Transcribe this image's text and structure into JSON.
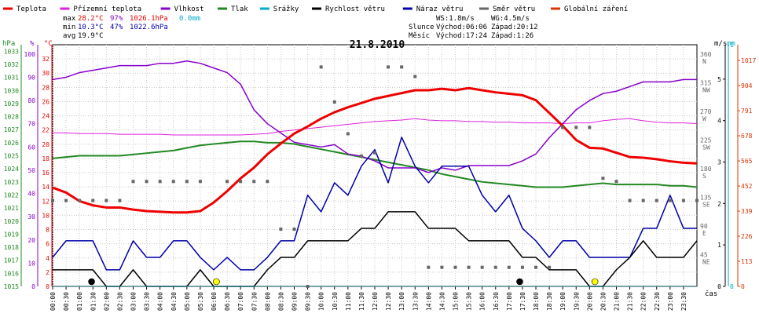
{
  "chart_data": {
    "type": "line",
    "title": "21.8.2010",
    "legend": [
      {
        "label": "Teplota",
        "color": "#ee0000"
      },
      {
        "label": "Přízemní teplota",
        "color": "#dd22dd"
      },
      {
        "label": "Vlhkost",
        "color": "#8800cc"
      },
      {
        "label": "Tlak",
        "color": "#228822"
      },
      {
        "label": "Srážky",
        "color": "#00aacc"
      },
      {
        "label": "Rychlost větru",
        "color": "#000000"
      },
      {
        "label": "Náraz větru",
        "color": "#0000aa"
      },
      {
        "label": "Směr větru",
        "color": "#666666"
      },
      {
        "label": "Globální záření",
        "color": "#dd3300"
      }
    ],
    "stats": {
      "max_label": "max",
      "max_temp": "28.2°C",
      "max_hum": "97%",
      "max_press": "1026.1hPa",
      "max_rain": "0.0mm",
      "min_label": "min",
      "min_temp": "10.3°C",
      "min_hum": "47%",
      "min_press": "1022.6hPa",
      "avg_label": "avg",
      "avg_temp": "19.9°C"
    },
    "wind_info": {
      "ws": "WS:1.8m/s",
      "wg": "WG:4.5m/s"
    },
    "sun": {
      "label": "Slunce",
      "rise": "Východ:06:06",
      "set": "Západ:20:12"
    },
    "moon": {
      "label": "Měsíc",
      "rise": "Východ:17:24",
      "set": "Západ:1:26"
    },
    "axes": {
      "hpa_title": "hPa",
      "pct_title": "%",
      "c_title": "°C",
      "ms_title": "m/s",
      "mm_title": "mm",
      "x_title": "čas",
      "hpa_ticks": [
        1015,
        1016,
        1017,
        1018,
        1019,
        1020,
        1021,
        1022,
        1023,
        1024,
        1025,
        1026,
        1027,
        1028,
        1029,
        1030,
        1031,
        1032,
        1033
      ],
      "pct_ticks": [
        0,
        10,
        20,
        30,
        40,
        50,
        60,
        70,
        80,
        90,
        100
      ],
      "c_ticks": [
        0,
        2,
        4,
        6,
        8,
        10,
        12,
        14,
        16,
        18,
        20,
        22,
        24,
        26,
        28,
        30,
        32
      ],
      "dir_ticks": [
        {
          "deg": "360",
          "dir": "N"
        },
        {
          "deg": "315",
          "dir": "NW"
        },
        {
          "deg": "270",
          "dir": "W"
        },
        {
          "deg": "225",
          "dir": "SW"
        },
        {
          "deg": "180",
          "dir": "S"
        },
        {
          "deg": "135",
          "dir": "SE"
        },
        {
          "deg": "90",
          "dir": "E"
        },
        {
          "deg": "45",
          "dir": "NE"
        }
      ],
      "ms_ticks": [
        0,
        1,
        2,
        3,
        4,
        5
      ],
      "mm_ticks": [
        0,
        1
      ],
      "rad_ticks": [
        0,
        113,
        226,
        339,
        452,
        565,
        678,
        791,
        904,
        1017
      ],
      "x_ticks": [
        "00:00",
        "00:30",
        "01:00",
        "01:30",
        "02:00",
        "02:30",
        "03:00",
        "03:30",
        "04:00",
        "04:30",
        "05:00",
        "05:30",
        "06:00",
        "06:30",
        "07:00",
        "07:30",
        "08:00",
        "08:30",
        "09:00",
        "09:30",
        "10:00",
        "10:30",
        "11:00",
        "11:30",
        "12:00",
        "12:30",
        "13:00",
        "13:30",
        "14:00",
        "14:30",
        "15:00",
        "15:30",
        "16:00",
        "16:30",
        "17:00",
        "17:30",
        "18:00",
        "18:30",
        "19:00",
        "19:30",
        "20:00",
        "20:30",
        "21:00",
        "21:30",
        "22:00",
        "22:30",
        "23:00",
        "23:30"
      ]
    },
    "x_hours": [
      0,
      0.5,
      1,
      1.5,
      2,
      2.5,
      3,
      3.5,
      4,
      4.5,
      5,
      5.5,
      6,
      6.5,
      7,
      7.5,
      8,
      8.5,
      9,
      9.5,
      10,
      10.5,
      11,
      11.5,
      12,
      12.5,
      13,
      13.5,
      14,
      14.5,
      15,
      15.5,
      16,
      16.5,
      17,
      17.5,
      18,
      18.5,
      19,
      19.5,
      20,
      20.5,
      21,
      21.5,
      22,
      22.5,
      23,
      23.5,
      24
    ],
    "series": [
      {
        "name": "Teplota",
        "color": "#ee0000",
        "unit": "°C",
        "values": [
          13.9,
          13.2,
          12,
          11.4,
          11.1,
          11.1,
          10.8,
          10.6,
          10.5,
          10.4,
          10.4,
          10.6,
          11.8,
          13.4,
          15.2,
          16.7,
          18.6,
          20.1,
          21.5,
          22.5,
          23.6,
          24.5,
          25.2,
          25.8,
          26.4,
          26.8,
          27.2,
          27.6,
          27.6,
          27.8,
          27.6,
          27.9,
          27.6,
          27.3,
          27.1,
          26.9,
          26.2,
          24.4,
          22.6,
          20.6,
          19.5,
          19.4,
          18.8,
          18.2,
          18.1,
          17.9,
          17.6,
          17.4,
          17.3
        ]
      },
      {
        "name": "Přízemní teplota",
        "color": "#dd22dd",
        "unit": "°C",
        "values": [
          21.6,
          21.6,
          21.5,
          21.5,
          21.5,
          21.4,
          21.4,
          21.4,
          21.4,
          21.3,
          21.3,
          21.3,
          21.3,
          21.3,
          21.3,
          21.4,
          21.5,
          21.8,
          22,
          22.2,
          22.4,
          22.6,
          22.8,
          23,
          23.2,
          23.3,
          23.4,
          23.6,
          23.4,
          23.3,
          23.3,
          23.2,
          23.2,
          23.1,
          23.1,
          23,
          23,
          23,
          22.9,
          23,
          23,
          23.3,
          23.5,
          23.6,
          23.3,
          23.1,
          23,
          23,
          22.9
        ]
      },
      {
        "name": "Vlhkost",
        "color": "#8800cc",
        "unit": "%",
        "values": [
          89,
          90,
          92,
          93,
          94,
          95,
          95,
          95,
          96,
          96,
          97,
          96,
          94,
          92,
          87,
          76,
          70,
          66,
          62,
          61,
          60,
          61,
          57,
          56,
          54,
          51,
          51,
          51,
          49,
          51,
          50,
          52,
          52,
          52,
          52,
          54,
          57,
          64,
          70,
          76,
          80,
          83,
          84,
          86,
          88,
          88,
          88,
          89,
          89
        ]
      },
      {
        "name": "Tlak",
        "color": "#228822",
        "unit": "hPa",
        "values": [
          1024.8,
          1024.9,
          1025,
          1025,
          1025,
          1025,
          1025.1,
          1025.2,
          1025.3,
          1025.4,
          1025.6,
          1025.8,
          1025.9,
          1026,
          1026.1,
          1026.1,
          1026,
          1026,
          1025.9,
          1025.7,
          1025.5,
          1025.3,
          1025.1,
          1024.9,
          1024.7,
          1024.5,
          1024.3,
          1024.1,
          1023.9,
          1023.6,
          1023.4,
          1023.2,
          1023,
          1022.9,
          1022.8,
          1022.7,
          1022.6,
          1022.6,
          1022.6,
          1022.7,
          1022.8,
          1022.9,
          1022.8,
          1022.8,
          1022.8,
          1022.8,
          1022.7,
          1022.7,
          1022.6
        ]
      },
      {
        "name": "Rychlost větru",
        "color": "#000000",
        "unit": "m/s",
        "values": [
          0.4,
          0.4,
          0.4,
          0.4,
          0,
          0,
          0.4,
          0,
          0,
          0,
          0,
          0.4,
          0,
          0,
          0,
          0,
          0.4,
          0.7,
          0.7,
          1.1,
          1.1,
          1.1,
          1.1,
          1.4,
          1.4,
          1.8,
          1.8,
          1.8,
          1.4,
          1.4,
          1.4,
          1.1,
          1.1,
          1.1,
          1.1,
          0.7,
          0.7,
          0.4,
          0.4,
          0.4,
          0,
          0,
          0.4,
          0.7,
          1.1,
          0.7,
          0.7,
          0.7,
          1.1
        ]
      },
      {
        "name": "Náraz větru",
        "color": "#0000aa",
        "unit": "m/s",
        "values": [
          0.7,
          1.1,
          1.1,
          1.1,
          0.4,
          0.4,
          1.1,
          0.7,
          0.7,
          1.1,
          1.1,
          0.7,
          0.4,
          0.7,
          0.4,
          0.4,
          0.7,
          1.1,
          1.1,
          2.2,
          1.8,
          2.5,
          2.2,
          2.9,
          3.3,
          2.5,
          3.6,
          2.9,
          2.5,
          2.9,
          2.9,
          2.9,
          2.2,
          1.8,
          2.2,
          1.4,
          1.1,
          0.7,
          1.1,
          1.1,
          0.7,
          0.7,
          0.7,
          0.7,
          1.4,
          1.4,
          2.2,
          1.4,
          1.4
        ]
      },
      {
        "name": "Směr větru",
        "color": "#666666",
        "unit": "°",
        "values": [
          135,
          135,
          135,
          135,
          135,
          135,
          165,
          165,
          165,
          165,
          165,
          165,
          null,
          165,
          165,
          165,
          165,
          90,
          90,
          0,
          345,
          290,
          240,
          205,
          210,
          345,
          345,
          330,
          30,
          30,
          30,
          30,
          30,
          30,
          30,
          30,
          30,
          30,
          250,
          250,
          250,
          170,
          165,
          135,
          135,
          135,
          135,
          135,
          135
        ]
      }
    ],
    "radiation": [
      0,
      0,
      0,
      0,
      0,
      0,
      0,
      0,
      0,
      0,
      0,
      0,
      0,
      0,
      0,
      0,
      0,
      0,
      0,
      0,
      0,
      0,
      0,
      0,
      0,
      0,
      0,
      0,
      0,
      0,
      0,
      0,
      0,
      0,
      0,
      0,
      0,
      0,
      0,
      0,
      0,
      0,
      0,
      0,
      0,
      0,
      0,
      0,
      0
    ],
    "rain_mm": 0.0,
    "markers": [
      {
        "type": "moon-set",
        "hour": 1.45,
        "color": "#000000"
      },
      {
        "type": "sunrise",
        "hour": 6.1,
        "color": "#ffff00"
      },
      {
        "type": "moon-rise",
        "hour": 17.4,
        "color": "#000000"
      },
      {
        "type": "sunset",
        "hour": 20.2,
        "color": "#ffff00"
      }
    ]
  }
}
